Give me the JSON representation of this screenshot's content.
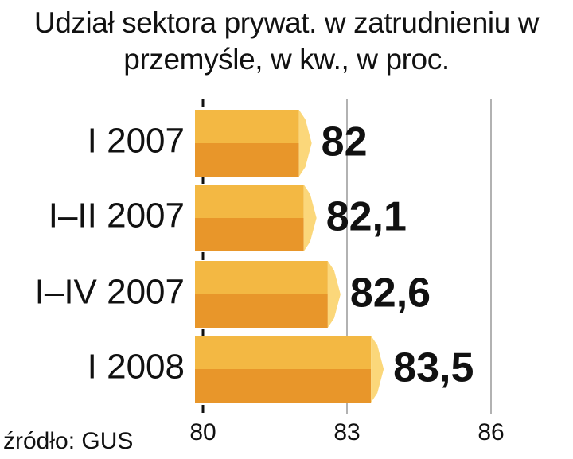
{
  "chart_data": {
    "type": "bar",
    "orientation": "horizontal",
    "title": "Udział sektora prywat. w zatrudnieniu w przemyśle, w kw., w proc.",
    "categories": [
      "I 2007",
      "I–II 2007",
      "I–IV 2007",
      "I 2008"
    ],
    "values": [
      82,
      82.1,
      82.6,
      83.5
    ],
    "value_labels": [
      "82",
      "82,1",
      "82,6",
      "83,5"
    ],
    "colors": {
      "top": "#f3b843",
      "bottom": "#e8962a",
      "tip": "#fbd77a"
    },
    "xlim": [
      80,
      86
    ],
    "xticks": [
      80,
      83,
      86
    ],
    "grid": true,
    "source": "źródło: GUS"
  }
}
